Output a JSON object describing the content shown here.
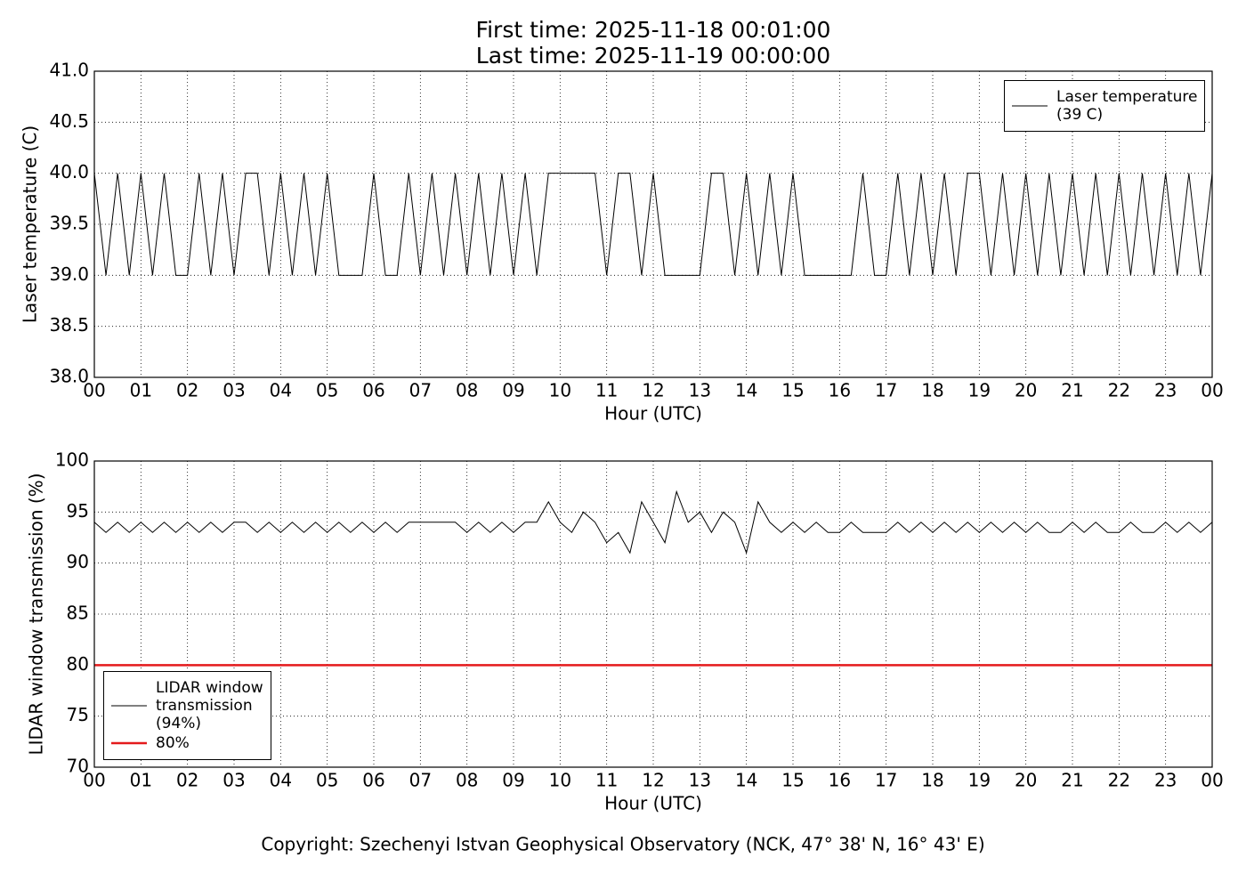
{
  "chart_data": [
    {
      "type": "line",
      "title": "First time: 2025-11-18 00:01:00",
      "subtitle": "Last time: 2025-11-19 00:00:00",
      "xlabel": "Hour (UTC)",
      "ylabel": "Laser temperature (C)",
      "x": [
        0,
        0.25,
        0.5,
        0.75,
        1,
        1.25,
        1.5,
        1.75,
        2,
        2.25,
        2.5,
        2.75,
        3,
        3.25,
        3.5,
        3.75,
        4,
        4.25,
        4.5,
        4.75,
        5,
        5.25,
        5.5,
        5.75,
        6,
        6.25,
        6.5,
        6.75,
        7,
        7.25,
        7.5,
        7.75,
        8,
        8.25,
        8.5,
        8.75,
        9,
        9.25,
        9.5,
        9.75,
        10,
        10.25,
        10.5,
        10.75,
        11,
        11.25,
        11.5,
        11.75,
        12,
        12.25,
        12.5,
        12.75,
        13,
        13.25,
        13.5,
        13.75,
        14,
        14.25,
        14.5,
        14.75,
        15,
        15.25,
        15.5,
        15.75,
        16,
        16.25,
        16.5,
        16.75,
        17,
        17.25,
        17.5,
        17.75,
        18,
        18.25,
        18.5,
        18.75,
        19,
        19.25,
        19.5,
        19.75,
        20,
        20.25,
        20.5,
        20.75,
        21,
        21.25,
        21.5,
        21.75,
        22,
        22.25,
        22.5,
        22.75,
        23,
        23.25,
        23.5,
        23.75,
        24
      ],
      "series": [
        {
          "name": "Laser temperature\n(39 C)",
          "color": "#000000",
          "values": [
            40,
            39,
            40,
            39,
            40,
            39,
            40,
            39,
            39,
            40,
            39,
            40,
            39,
            40,
            40,
            39,
            40,
            39,
            40,
            39,
            40,
            39,
            39,
            39,
            40,
            39,
            39,
            40,
            39,
            40,
            39,
            40,
            39,
            40,
            39,
            40,
            39,
            40,
            39,
            40,
            40,
            40,
            40,
            40,
            39,
            40,
            40,
            39,
            40,
            39,
            39,
            39,
            39,
            40,
            40,
            39,
            40,
            39,
            40,
            39,
            40,
            39,
            39,
            39,
            39,
            39,
            40,
            39,
            39,
            40,
            39,
            40,
            39,
            40,
            39,
            40,
            40,
            39,
            40,
            39,
            40,
            39,
            40,
            39,
            40,
            39,
            40,
            39,
            40,
            39,
            40,
            39,
            40,
            39,
            40,
            39,
            40
          ]
        }
      ],
      "xlim": [
        0,
        24
      ],
      "xticks": [
        {
          "value": 0,
          "label": "00"
        },
        {
          "value": 1,
          "label": "01"
        },
        {
          "value": 2,
          "label": "02"
        },
        {
          "value": 3,
          "label": "03"
        },
        {
          "value": 4,
          "label": "04"
        },
        {
          "value": 5,
          "label": "05"
        },
        {
          "value": 6,
          "label": "06"
        },
        {
          "value": 7,
          "label": "07"
        },
        {
          "value": 8,
          "label": "08"
        },
        {
          "value": 9,
          "label": "09"
        },
        {
          "value": 10,
          "label": "10"
        },
        {
          "value": 11,
          "label": "11"
        },
        {
          "value": 12,
          "label": "12"
        },
        {
          "value": 13,
          "label": "13"
        },
        {
          "value": 14,
          "label": "14"
        },
        {
          "value": 15,
          "label": "15"
        },
        {
          "value": 16,
          "label": "16"
        },
        {
          "value": 17,
          "label": "17"
        },
        {
          "value": 18,
          "label": "18"
        },
        {
          "value": 19,
          "label": "19"
        },
        {
          "value": 20,
          "label": "20"
        },
        {
          "value": 21,
          "label": "21"
        },
        {
          "value": 22,
          "label": "22"
        },
        {
          "value": 23,
          "label": "23"
        },
        {
          "value": 24,
          "label": "00"
        }
      ],
      "ylim": [
        38,
        41
      ],
      "yticks": [
        {
          "value": 38,
          "label": "38.0"
        },
        38.5,
        {
          "value": 39,
          "label": "39.0"
        },
        39.5,
        {
          "value": 40,
          "label": "40.0"
        },
        40.5,
        {
          "value": 41,
          "label": "41.0"
        }
      ],
      "grid": true,
      "legend": "upper right"
    },
    {
      "type": "line",
      "xlabel": "Hour (UTC)",
      "ylabel": "LIDAR window transmission (%)",
      "x": [
        0,
        0.25,
        0.5,
        0.75,
        1,
        1.25,
        1.5,
        1.75,
        2,
        2.25,
        2.5,
        2.75,
        3,
        3.25,
        3.5,
        3.75,
        4,
        4.25,
        4.5,
        4.75,
        5,
        5.25,
        5.5,
        5.75,
        6,
        6.25,
        6.5,
        6.75,
        7,
        7.25,
        7.5,
        7.75,
        8,
        8.25,
        8.5,
        8.75,
        9,
        9.25,
        9.5,
        9.75,
        10,
        10.25,
        10.5,
        10.75,
        11,
        11.25,
        11.5,
        11.75,
        12,
        12.25,
        12.5,
        12.75,
        13,
        13.25,
        13.5,
        13.75,
        14,
        14.25,
        14.5,
        14.75,
        15,
        15.25,
        15.5,
        15.75,
        16,
        16.25,
        16.5,
        16.75,
        17,
        17.25,
        17.5,
        17.75,
        18,
        18.25,
        18.5,
        18.75,
        19,
        19.25,
        19.5,
        19.75,
        20,
        20.25,
        20.5,
        20.75,
        21,
        21.25,
        21.5,
        21.75,
        22,
        22.25,
        22.5,
        22.75,
        23,
        23.25,
        23.5,
        23.75,
        24
      ],
      "series": [
        {
          "name": "LIDAR window\ntransmission\n(94%)",
          "color": "#000000",
          "values": [
            94,
            93,
            94,
            93,
            94,
            93,
            94,
            93,
            94,
            93,
            94,
            93,
            94,
            94,
            93,
            94,
            93,
            94,
            93,
            94,
            93,
            94,
            93,
            94,
            93,
            94,
            93,
            94,
            94,
            94,
            94,
            94,
            93,
            94,
            93,
            94,
            93,
            94,
            94,
            96,
            94,
            93,
            95,
            94,
            92,
            93,
            91,
            96,
            94,
            92,
            97,
            94,
            95,
            93,
            95,
            94,
            91,
            96,
            94,
            93,
            94,
            93,
            94,
            93,
            93,
            94,
            93,
            93,
            93,
            94,
            93,
            94,
            93,
            94,
            93,
            94,
            93,
            94,
            93,
            94,
            93,
            94,
            93,
            93,
            94,
            93,
            94,
            93,
            93,
            94,
            93,
            93,
            94,
            93,
            94,
            93,
            94
          ]
        },
        {
          "name": "80%",
          "color": "#e41a1c",
          "x": [
            0,
            24
          ],
          "values": [
            80,
            80
          ]
        }
      ],
      "xlim": [
        0,
        24
      ],
      "xticks": [
        {
          "value": 0,
          "label": "00"
        },
        {
          "value": 1,
          "label": "01"
        },
        {
          "value": 2,
          "label": "02"
        },
        {
          "value": 3,
          "label": "03"
        },
        {
          "value": 4,
          "label": "04"
        },
        {
          "value": 5,
          "label": "05"
        },
        {
          "value": 6,
          "label": "06"
        },
        {
          "value": 7,
          "label": "07"
        },
        {
          "value": 8,
          "label": "08"
        },
        {
          "value": 9,
          "label": "09"
        },
        {
          "value": 10,
          "label": "10"
        },
        {
          "value": 11,
          "label": "11"
        },
        {
          "value": 12,
          "label": "12"
        },
        {
          "value": 13,
          "label": "13"
        },
        {
          "value": 14,
          "label": "14"
        },
        {
          "value": 15,
          "label": "15"
        },
        {
          "value": 16,
          "label": "16"
        },
        {
          "value": 17,
          "label": "17"
        },
        {
          "value": 18,
          "label": "18"
        },
        {
          "value": 19,
          "label": "19"
        },
        {
          "value": 20,
          "label": "20"
        },
        {
          "value": 21,
          "label": "21"
        },
        {
          "value": 22,
          "label": "22"
        },
        {
          "value": 23,
          "label": "23"
        },
        {
          "value": 24,
          "label": "00"
        }
      ],
      "ylim": [
        70,
        100
      ],
      "yticks": [
        70,
        75,
        80,
        85,
        90,
        95,
        100
      ],
      "grid": true,
      "legend": "lower left"
    }
  ],
  "footer": "Copyright: Szechenyi Istvan Geophysical Observatory (NCK, 47° 38' N, 16° 43' E)"
}
